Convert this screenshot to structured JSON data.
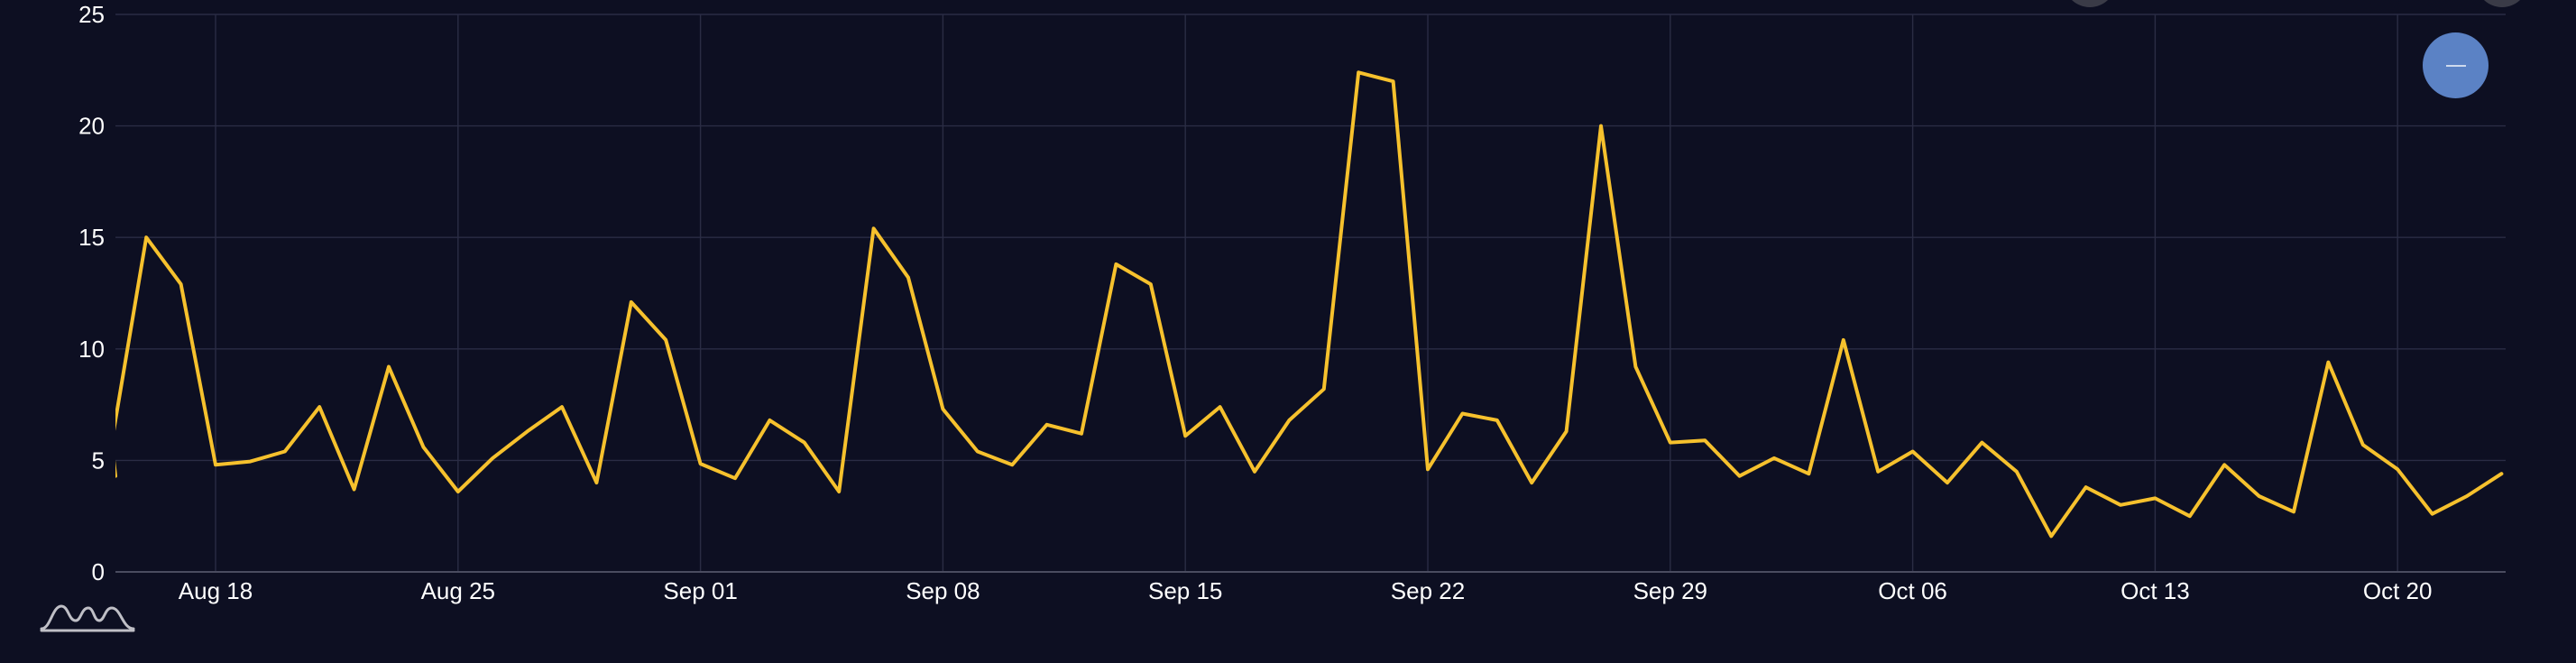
{
  "theme": {
    "background": "#0d0f22",
    "line_color": "#f6c12d",
    "grid_color": "#2a2c44",
    "button_color": "#5b82c5"
  },
  "chart_data": {
    "type": "line",
    "title": "",
    "xlabel": "",
    "ylabel": "",
    "ylim": [
      0,
      25
    ],
    "xlim": [
      "2025-08-15",
      "2025-10-23"
    ],
    "yticks": [
      "0",
      "5",
      "10",
      "15",
      "20",
      "25"
    ],
    "xticks": [
      {
        "date": "2025-08-18",
        "label": "Aug 18"
      },
      {
        "date": "2025-08-25",
        "label": "Aug 25"
      },
      {
        "date": "2025-09-01",
        "label": "Sep 01"
      },
      {
        "date": "2025-09-08",
        "label": "Sep 08"
      },
      {
        "date": "2025-09-15",
        "label": "Sep 15"
      },
      {
        "date": "2025-09-22",
        "label": "Sep 22"
      },
      {
        "date": "2025-09-29",
        "label": "Sep 29"
      },
      {
        "date": "2025-10-06",
        "label": "Oct 06"
      },
      {
        "date": "2025-10-13",
        "label": "Oct 13"
      },
      {
        "date": "2025-10-20",
        "label": "Oct 20"
      }
    ],
    "grid": true,
    "legend": "none",
    "series": [
      {
        "color": "#f6c12d",
        "x": [
          "2025-08-15",
          "2025-08-16",
          "2025-08-17",
          "2025-08-18",
          "2025-08-19",
          "2025-08-20",
          "2025-08-21",
          "2025-08-22",
          "2025-08-23",
          "2025-08-24",
          "2025-08-25",
          "2025-08-26",
          "2025-08-27",
          "2025-08-28",
          "2025-08-29",
          "2025-08-30",
          "2025-08-31",
          "2025-09-01",
          "2025-09-02",
          "2025-09-03",
          "2025-09-04",
          "2025-09-05",
          "2025-09-06",
          "2025-09-07",
          "2025-09-08",
          "2025-09-09",
          "2025-09-10",
          "2025-09-11",
          "2025-09-12",
          "2025-09-13",
          "2025-09-14",
          "2025-09-15",
          "2025-09-16",
          "2025-09-17",
          "2025-09-18",
          "2025-09-19",
          "2025-09-20",
          "2025-09-21",
          "2025-09-22",
          "2025-09-23",
          "2025-09-24",
          "2025-09-25",
          "2025-09-26",
          "2025-09-27",
          "2025-09-28",
          "2025-09-29",
          "2025-09-30",
          "2025-10-01",
          "2025-10-02",
          "2025-10-03",
          "2025-10-04",
          "2025-10-05",
          "2025-10-06",
          "2025-10-07",
          "2025-10-08",
          "2025-10-09",
          "2025-10-10",
          "2025-10-11",
          "2025-10-12",
          "2025-10-13",
          "2025-10-14",
          "2025-10-15",
          "2025-10-16",
          "2025-10-17",
          "2025-10-18",
          "2025-10-19",
          "2025-10-20",
          "2025-10-21",
          "2025-10-22",
          "2025-10-23"
        ],
        "values": [
          5.8,
          15.0,
          12.9,
          4.8,
          4.95,
          5.4,
          7.4,
          3.7,
          9.2,
          5.6,
          3.6,
          5.1,
          6.3,
          7.4,
          4.0,
          12.1,
          10.4,
          4.85,
          4.2,
          6.8,
          5.8,
          3.6,
          15.4,
          13.2,
          7.3,
          5.4,
          4.8,
          6.6,
          6.2,
          13.8,
          12.9,
          6.1,
          7.4,
          4.5,
          6.8,
          8.2,
          22.4,
          22.0,
          4.6,
          7.1,
          6.8,
          4.0,
          6.3,
          20.0,
          9.2,
          5.8,
          5.9,
          4.3,
          5.1,
          4.4,
          10.4,
          4.5,
          5.4,
          4.0,
          5.8,
          4.5,
          1.6,
          3.8,
          3.0,
          3.3,
          2.5,
          4.8,
          3.4,
          2.7,
          9.4,
          5.7,
          4.6,
          2.6,
          3.4,
          4.4
        ]
      }
    ]
  },
  "controls": {
    "zoom_reset": {
      "icon": "minus-icon"
    }
  },
  "branding": {
    "logo_icon": "chart-logo-icon"
  }
}
